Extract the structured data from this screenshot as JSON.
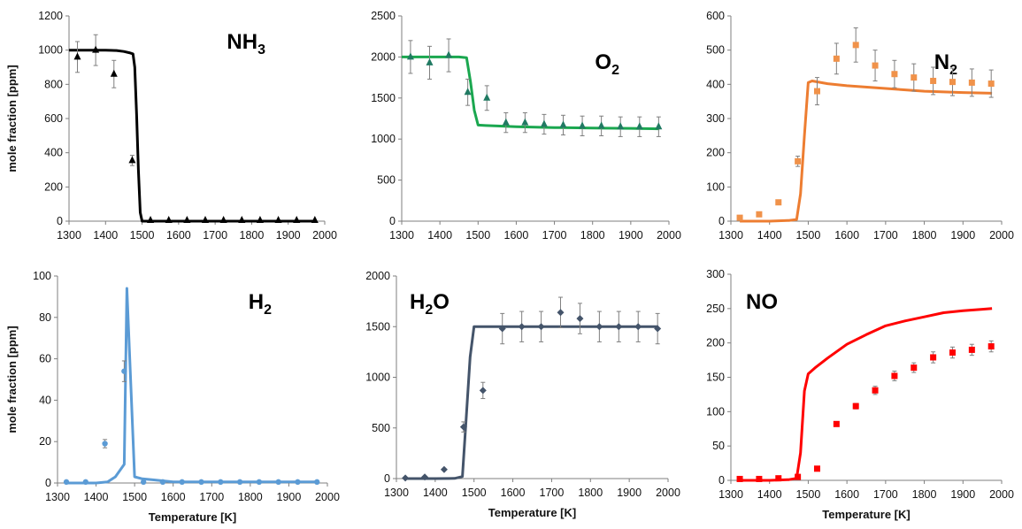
{
  "chart_data": [
    {
      "type": "scatter",
      "title": "NH",
      "title_sub": "3",
      "xlabel": "",
      "ylabel": "mole fraction [ppm]",
      "xlim": [
        1300,
        2000
      ],
      "ylim": [
        0,
        1200
      ],
      "xticks": [
        "1300",
        "1400",
        "1500",
        "1600",
        "1700",
        "1800",
        "1900",
        "2000"
      ],
      "yticks": [
        "0",
        "200",
        "400",
        "600",
        "800",
        "1000",
        "1200"
      ],
      "color": "#000000",
      "marker": "triangle",
      "series": [
        {
          "kind": "model",
          "x": [
            1300,
            1350,
            1400,
            1430,
            1450,
            1465,
            1475,
            1480,
            1485,
            1490,
            1495,
            1500,
            1550,
            1600,
            1700,
            1800,
            1900,
            1975
          ],
          "y": [
            1000,
            1000,
            1000,
            998,
            992,
            985,
            978,
            900,
            620,
            300,
            50,
            0,
            0,
            0,
            0,
            0,
            0,
            0
          ]
        },
        {
          "kind": "experiment",
          "x": [
            1323,
            1373,
            1423,
            1473,
            1523,
            1573,
            1623,
            1673,
            1723,
            1773,
            1823,
            1873,
            1923,
            1973
          ],
          "y": [
            960,
            1000,
            860,
            355,
            5,
            5,
            5,
            5,
            5,
            5,
            5,
            5,
            5,
            5
          ],
          "err": [
            90,
            90,
            80,
            30,
            0,
            0,
            0,
            0,
            0,
            0,
            0,
            0,
            0,
            0
          ]
        }
      ]
    },
    {
      "type": "scatter",
      "title": "O",
      "title_sub": "2",
      "xlabel": "",
      "ylabel": "",
      "xlim": [
        1300,
        2000
      ],
      "ylim": [
        0,
        2500
      ],
      "xticks": [
        "1300",
        "1400",
        "1500",
        "1600",
        "1700",
        "1800",
        "1900",
        "2000"
      ],
      "yticks": [
        "0",
        "500",
        "1000",
        "1500",
        "2000",
        "2500"
      ],
      "color": "#1aa74f",
      "marker": "triangle",
      "marker_color": "#207a62",
      "series": [
        {
          "kind": "model",
          "x": [
            1300,
            1400,
            1450,
            1470,
            1480,
            1490,
            1500,
            1520,
            1550,
            1600,
            1700,
            1800,
            1900,
            1975
          ],
          "y": [
            2000,
            2000,
            2000,
            1990,
            1700,
            1350,
            1170,
            1165,
            1160,
            1150,
            1140,
            1135,
            1130,
            1125
          ]
        },
        {
          "kind": "experiment",
          "x": [
            1323,
            1373,
            1423,
            1473,
            1523,
            1573,
            1623,
            1673,
            1723,
            1773,
            1823,
            1873,
            1923,
            1973
          ],
          "y": [
            2000,
            1930,
            2020,
            1570,
            1500,
            1200,
            1200,
            1180,
            1170,
            1160,
            1160,
            1150,
            1150,
            1150
          ],
          "err": [
            200,
            200,
            200,
            160,
            150,
            120,
            120,
            120,
            120,
            120,
            120,
            120,
            120,
            120
          ]
        }
      ]
    },
    {
      "type": "scatter",
      "title": "N",
      "title_sub": "2",
      "xlabel": "",
      "ylabel": "",
      "xlim": [
        1300,
        2000
      ],
      "ylim": [
        0,
        600
      ],
      "xticks": [
        "1300",
        "1400",
        "1500",
        "1600",
        "1700",
        "1800",
        "1900",
        "2000"
      ],
      "yticks": [
        "0",
        "100",
        "200",
        "300",
        "400",
        "500",
        "600"
      ],
      "color": "#ed7d31",
      "marker": "square",
      "marker_color": "#f0924a",
      "series": [
        {
          "kind": "model",
          "x": [
            1323,
            1400,
            1450,
            1470,
            1480,
            1490,
            1500,
            1510,
            1550,
            1600,
            1700,
            1800,
            1900,
            1975
          ],
          "y": [
            0,
            0,
            2,
            5,
            80,
            250,
            405,
            410,
            402,
            396,
            388,
            380,
            376,
            374
          ]
        },
        {
          "kind": "experiment",
          "x": [
            1323,
            1373,
            1423,
            1473,
            1523,
            1573,
            1623,
            1673,
            1723,
            1773,
            1823,
            1873,
            1923,
            1973
          ],
          "y": [
            10,
            20,
            55,
            175,
            380,
            475,
            515,
            455,
            430,
            420,
            410,
            407,
            405,
            402
          ],
          "err": [
            0,
            0,
            0,
            15,
            40,
            45,
            50,
            45,
            40,
            40,
            40,
            40,
            40,
            40
          ]
        }
      ]
    },
    {
      "type": "scatter",
      "title": "H",
      "title_sub": "2",
      "xlabel": "Temperature [K]",
      "ylabel": "mole fraction [ppm]",
      "xlim": [
        1300,
        2000
      ],
      "ylim": [
        0,
        100
      ],
      "xticks": [
        "1300",
        "1400",
        "1500",
        "1600",
        "1700",
        "1800",
        "1900",
        "2000"
      ],
      "yticks": [
        "0",
        "20",
        "40",
        "60",
        "80",
        "100"
      ],
      "color": "#5b9bd5",
      "marker": "circle",
      "series": [
        {
          "kind": "model",
          "x": [
            1323,
            1400,
            1430,
            1450,
            1473,
            1480,
            1500,
            1520,
            1550,
            1600,
            1700,
            1800,
            1900,
            1975
          ],
          "y": [
            0,
            0,
            0.5,
            3,
            9,
            94,
            3,
            2,
            1.5,
            0.5,
            0.5,
            0.5,
            0.5,
            0.5
          ]
        },
        {
          "kind": "experiment",
          "x": [
            1323,
            1373,
            1423,
            1473,
            1523,
            1573,
            1623,
            1673,
            1723,
            1773,
            1823,
            1873,
            1923,
            1973
          ],
          "y": [
            0.5,
            0.5,
            19,
            54,
            0.5,
            0.5,
            0.5,
            0.5,
            0.5,
            0.5,
            0.5,
            0.5,
            0.5,
            0.5
          ],
          "err": [
            0,
            0,
            2,
            5,
            0,
            0,
            0,
            0,
            0,
            0,
            0,
            0,
            0,
            0
          ]
        }
      ]
    },
    {
      "type": "scatter",
      "title": "H",
      "title_sub": "2",
      "title_tail": "O",
      "xlabel": "Temperature [K]",
      "ylabel": "",
      "xlim": [
        1300,
        2000
      ],
      "ylim": [
        0,
        2000
      ],
      "xticks": [
        "1300",
        "1400",
        "1500",
        "1600",
        "1700",
        "1800",
        "1900",
        "2000"
      ],
      "yticks": [
        "0",
        "500",
        "1000",
        "1500",
        "2000"
      ],
      "color": "#44546a",
      "marker": "diamond",
      "series": [
        {
          "kind": "model",
          "x": [
            1323,
            1400,
            1450,
            1470,
            1480,
            1490,
            1500,
            1550,
            1600,
            1700,
            1800,
            1900,
            1975
          ],
          "y": [
            0,
            0,
            2,
            20,
            600,
            1200,
            1500,
            1500,
            1500,
            1500,
            1500,
            1500,
            1500
          ]
        },
        {
          "kind": "experiment",
          "x": [
            1323,
            1373,
            1423,
            1473,
            1523,
            1573,
            1623,
            1673,
            1723,
            1773,
            1823,
            1873,
            1923,
            1973
          ],
          "y": [
            5,
            15,
            90,
            510,
            870,
            1480,
            1500,
            1500,
            1640,
            1580,
            1500,
            1500,
            1500,
            1480
          ],
          "err": [
            0,
            0,
            0,
            50,
            80,
            150,
            150,
            150,
            150,
            150,
            150,
            150,
            150,
            150
          ]
        }
      ]
    },
    {
      "type": "scatter",
      "title": "NO",
      "title_sub": "",
      "xlabel": "Temperature [K]",
      "ylabel": "",
      "xlim": [
        1300,
        2000
      ],
      "ylim": [
        0,
        300
      ],
      "xticks": [
        "1300",
        "1400",
        "1500",
        "1600",
        "1700",
        "1800",
        "1900",
        "2000"
      ],
      "yticks": [
        "0",
        "50",
        "100",
        "150",
        "200",
        "250",
        "300"
      ],
      "color": "#ff0000",
      "marker": "square",
      "series": [
        {
          "kind": "model",
          "x": [
            1323,
            1400,
            1450,
            1470,
            1480,
            1490,
            1500,
            1520,
            1550,
            1600,
            1650,
            1700,
            1750,
            1800,
            1850,
            1900,
            1950,
            1975
          ],
          "y": [
            0,
            0,
            1,
            3,
            40,
            130,
            155,
            165,
            178,
            198,
            212,
            225,
            232,
            238,
            244,
            247,
            249,
            250
          ]
        },
        {
          "kind": "experiment",
          "x": [
            1323,
            1373,
            1423,
            1473,
            1523,
            1573,
            1623,
            1673,
            1723,
            1773,
            1823,
            1873,
            1923,
            1973
          ],
          "y": [
            2,
            2,
            3,
            5,
            17,
            82,
            108,
            131,
            152,
            164,
            179,
            186,
            190,
            195
          ],
          "err": [
            0,
            0,
            0,
            0,
            0,
            0,
            4,
            6,
            7,
            7,
            8,
            8,
            8,
            8
          ]
        }
      ]
    }
  ]
}
